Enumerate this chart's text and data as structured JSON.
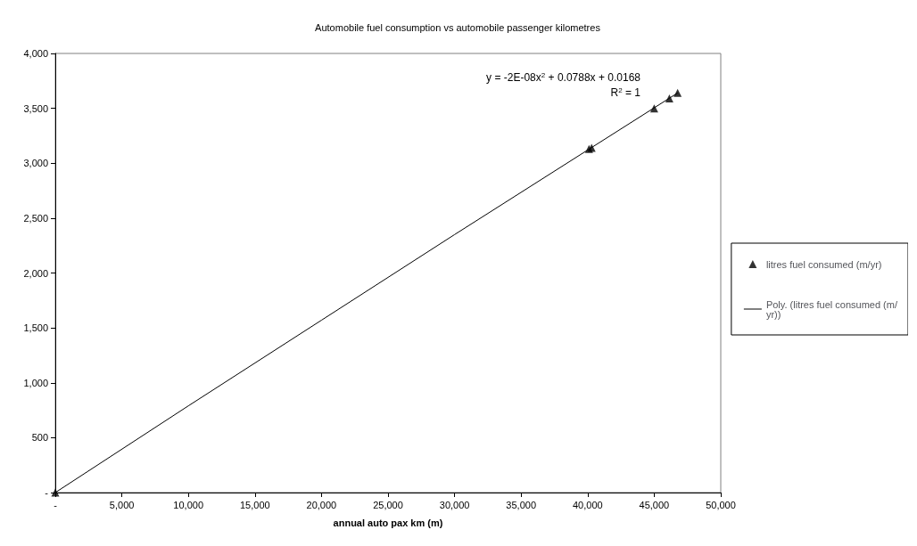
{
  "chart_data": {
    "type": "scatter",
    "title": "Automobile fuel consumption vs automobile passenger kilometres",
    "xlabel": "annual auto pax km (m)",
    "xlim": [
      0,
      50000
    ],
    "xticks": [
      {
        "value": 0,
        "label": "-"
      },
      {
        "value": 5000,
        "label": "5,000"
      },
      {
        "value": 10000,
        "label": "10,000"
      },
      {
        "value": 15000,
        "label": "15,000"
      },
      {
        "value": 20000,
        "label": "20,000"
      },
      {
        "value": 25000,
        "label": "25,000"
      },
      {
        "value": 30000,
        "label": "30,000"
      },
      {
        "value": 35000,
        "label": "35,000"
      },
      {
        "value": 40000,
        "label": "40,000"
      },
      {
        "value": 45000,
        "label": "45,000"
      },
      {
        "value": 50000,
        "label": "50,000"
      }
    ],
    "ylim": [
      0,
      4000
    ],
    "yticks": [
      {
        "value": 0,
        "label": "-"
      },
      500,
      {
        "value": 1000,
        "label": "1,000"
      },
      {
        "value": 1500,
        "label": "1,500"
      },
      {
        "value": 2000,
        "label": "2,000"
      },
      {
        "value": 2500,
        "label": "2,500"
      },
      {
        "value": 3000,
        "label": "3,000"
      },
      {
        "value": 3500,
        "label": "3,500"
      },
      {
        "value": 4000,
        "label": "4,000"
      }
    ],
    "grid": false,
    "legend": "right",
    "annotations": [
      "y = -2E-08x$^{2}$ + 0.0788x + 0.0168",
      "R$^{2}$ = 1"
    ],
    "series": [
      {
        "name": "litres fuel consumed (m/yr)",
        "marker": "triangle",
        "color": "#000000",
        "x": [
          0,
          40100,
          40300,
          45000,
          46140,
          46760
        ],
        "values": [
          0,
          3130,
          3140,
          3500,
          3590,
          3640
        ]
      },
      {
        "name": "Poly. (litres fuel consumed (m/yr))",
        "type": "line",
        "marker": "none",
        "color": "#000000",
        "x": [
          0,
          10000,
          20000,
          30000,
          40000,
          46760
        ],
        "values": [
          0,
          790,
          1570,
          2350,
          3120,
          3640
        ]
      }
    ]
  }
}
